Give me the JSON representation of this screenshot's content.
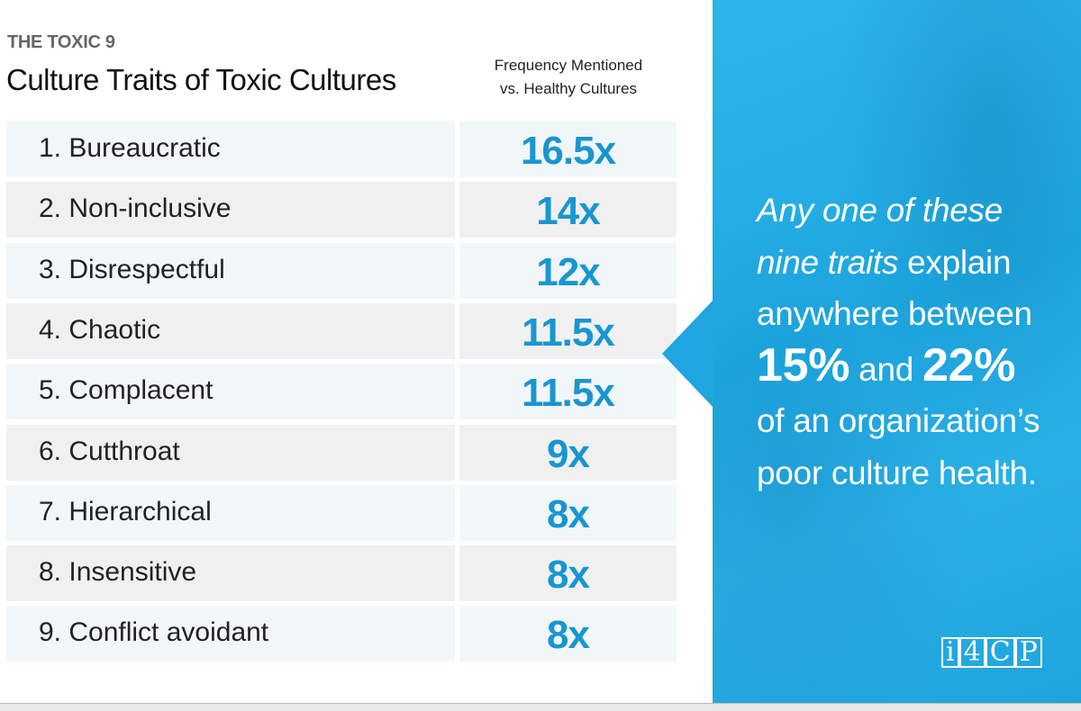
{
  "header": {
    "kicker": "THE TOXIC 9",
    "title": "Culture Traits of Toxic Cultures",
    "column_header_line1": "Frequency Mentioned",
    "column_header_line2": "vs. Healthy Cultures"
  },
  "rows": [
    {
      "label": "1.  Bureaucratic",
      "value": "16.5x"
    },
    {
      "label": "2.  Non-inclusive",
      "value": "14x"
    },
    {
      "label": "3.  Disrespectful",
      "value": "12x"
    },
    {
      "label": "4.  Chaotic",
      "value": "11.5x"
    },
    {
      "label": "5.  Complacent",
      "value": "11.5x"
    },
    {
      "label": "6.  Cutthroat",
      "value": "9x"
    },
    {
      "label": "7.  Hierarchical",
      "value": "8x"
    },
    {
      "label": "8.  Insensitive",
      "value": "8x"
    },
    {
      "label": "9.  Conflict avoidant",
      "value": "8x"
    }
  ],
  "callout": {
    "italic_1": "Any one of these",
    "italic_2": "nine traits",
    "text_1": " explain",
    "text_2": "anywhere between",
    "pct_low": "15%",
    "and": " and ",
    "pct_high": "22%",
    "text_3": "of an organization’s",
    "text_4": "poor culture health."
  },
  "logo": {
    "parts": [
      "i",
      "4",
      "C",
      "P"
    ]
  },
  "colors": {
    "accent": "#1896d1",
    "panel": "#1ea9e2",
    "row_alt_blue": "#f1f6f9",
    "row_alt_grey": "#f0f0f0"
  }
}
